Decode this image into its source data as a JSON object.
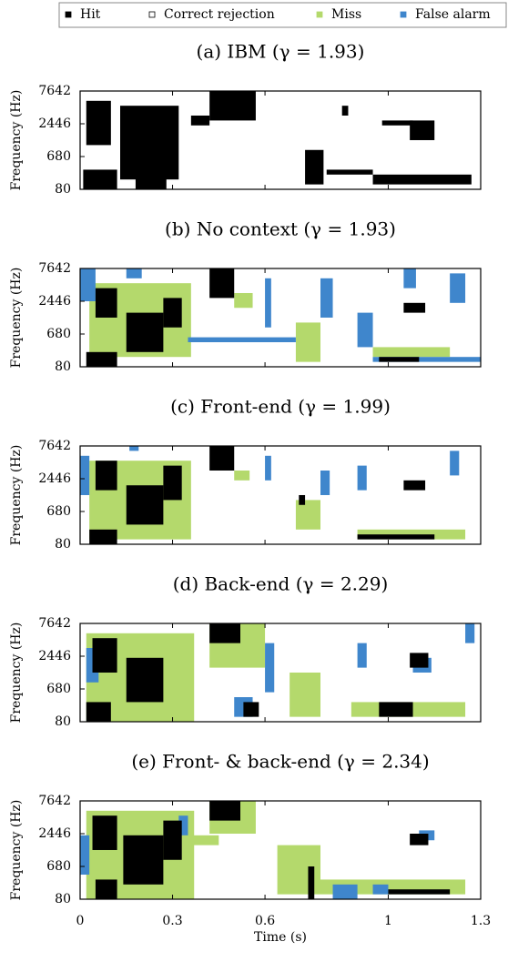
{
  "legend": {
    "series": [
      {
        "name": "Hit",
        "color": "#000000"
      },
      {
        "name": "Correct rejection",
        "color": "#ffffff"
      },
      {
        "name": "Miss",
        "color": "#b4d96c"
      },
      {
        "name": "False alarm",
        "color": "#3f86cc"
      }
    ]
  },
  "chart_data": [
    {
      "type": "mask",
      "title": "(a) IBM (γ = 1.93)",
      "ylabel": "Frequency (Hz)",
      "yscale": "erb",
      "ylim": [
        80,
        7642
      ],
      "yticks": [
        80,
        680,
        2446,
        7642
      ],
      "xlim": [
        0,
        1.3
      ],
      "xticks": [
        0,
        0.3,
        0.6,
        1,
        1.3
      ],
      "xtick_labels": false,
      "regions": [
        {
          "k": 0,
          "t0": 0.02,
          "t1": 0.1,
          "f0": 1097,
          "f1": 5465
        },
        {
          "k": 0,
          "t0": 0.13,
          "t1": 0.32,
          "f0": 198,
          "f1": 4616
        },
        {
          "k": 0,
          "t0": 0.18,
          "t1": 0.28,
          "f0": 80,
          "f1": 587
        },
        {
          "k": 0,
          "t0": 0.01,
          "t1": 0.12,
          "f0": 80,
          "f1": 361
        },
        {
          "k": 0,
          "t0": 0.42,
          "t1": 0.57,
          "f0": 2751,
          "f1": 7642
        },
        {
          "k": 0,
          "t0": 0.36,
          "t1": 0.42,
          "f0": 2305,
          "f1": 3275
        },
        {
          "k": 0,
          "t0": 0.73,
          "t1": 0.79,
          "f0": 134,
          "f1": 900
        },
        {
          "k": 0,
          "t0": 1.07,
          "t1": 1.15,
          "f0": 1331,
          "f1": 2751
        },
        {
          "k": 0,
          "t0": 0.98,
          "t1": 1.08,
          "f0": 2305,
          "f1": 2751
        },
        {
          "k": 0,
          "t0": 0.95,
          "t1": 1.27,
          "f0": 134,
          "f1": 273
        },
        {
          "k": 0,
          "t0": 0.8,
          "t1": 0.95,
          "f0": 273,
          "f1": 361
        },
        {
          "k": 0,
          "t0": 0.85,
          "t1": 0.87,
          "f0": 3275,
          "f1": 4616
        }
      ]
    },
    {
      "type": "mask",
      "title": "(b) No context (γ = 1.93)",
      "ylabel": "Frequency (Hz)",
      "yscale": "erb",
      "ylim": [
        80,
        7642
      ],
      "yticks": [
        80,
        680,
        2446,
        7642
      ],
      "xlim": [
        0,
        1.3
      ],
      "xticks": [
        0,
        0.3,
        0.6,
        1,
        1.3
      ],
      "xtick_labels": false,
      "regions": [
        {
          "k": 2,
          "t0": 0.03,
          "t1": 0.36,
          "f0": 198,
          "f1": 4616
        },
        {
          "k": 2,
          "t0": 0.7,
          "t1": 0.78,
          "f0": 134,
          "f1": 1097
        },
        {
          "k": 2,
          "t0": 0.95,
          "t1": 1.2,
          "f0": 198,
          "f1": 361
        },
        {
          "k": 2,
          "t0": 0.5,
          "t1": 0.56,
          "f0": 1924,
          "f1": 3275
        },
        {
          "k": 3,
          "t0": 0.0,
          "t1": 0.05,
          "f0": 2446,
          "f1": 7642
        },
        {
          "k": 3,
          "t0": 0.6,
          "t1": 0.62,
          "f0": 900,
          "f1": 5465
        },
        {
          "k": 3,
          "t0": 0.95,
          "t1": 1.3,
          "f0": 134,
          "f1": 198
        },
        {
          "k": 3,
          "t0": 1.05,
          "t1": 1.09,
          "f0": 3888,
          "f1": 7642
        },
        {
          "k": 3,
          "t0": 1.2,
          "t1": 1.25,
          "f0": 2305,
          "f1": 6469
        },
        {
          "k": 3,
          "t0": 0.35,
          "t1": 0.7,
          "f0": 465,
          "f1": 587
        },
        {
          "k": 3,
          "t0": 0.78,
          "t1": 0.82,
          "f0": 1331,
          "f1": 5465
        },
        {
          "k": 3,
          "t0": 0.15,
          "t1": 0.2,
          "f0": 5465,
          "f1": 7642
        },
        {
          "k": 3,
          "t0": 0.9,
          "t1": 0.95,
          "f0": 361,
          "f1": 1604
        },
        {
          "k": 0,
          "t0": 0.05,
          "t1": 0.12,
          "f0": 1331,
          "f1": 3888
        },
        {
          "k": 0,
          "t0": 0.15,
          "t1": 0.27,
          "f0": 273,
          "f1": 1604
        },
        {
          "k": 0,
          "t0": 0.27,
          "t1": 0.33,
          "f0": 900,
          "f1": 2751
        },
        {
          "k": 0,
          "t0": 0.42,
          "t1": 0.5,
          "f0": 2751,
          "f1": 7642
        },
        {
          "k": 0,
          "t0": 0.02,
          "t1": 0.12,
          "f0": 80,
          "f1": 273
        },
        {
          "k": 0,
          "t0": 0.97,
          "t1": 1.1,
          "f0": 134,
          "f1": 198
        },
        {
          "k": 0,
          "t0": 1.05,
          "t1": 1.12,
          "f0": 1604,
          "f1": 2305
        }
      ]
    },
    {
      "type": "mask",
      "title": "(c) Front-end (γ = 1.99)",
      "ylabel": "Frequency (Hz)",
      "yscale": "erb",
      "ylim": [
        80,
        7642
      ],
      "yticks": [
        80,
        680,
        2446,
        7642
      ],
      "xlim": [
        0,
        1.3
      ],
      "xticks": [
        0,
        0.3,
        0.6,
        1,
        1.3
      ],
      "xtick_labels": false,
      "regions": [
        {
          "k": 2,
          "t0": 0.03,
          "t1": 0.36,
          "f0": 134,
          "f1": 4616
        },
        {
          "k": 2,
          "t0": 0.7,
          "t1": 0.78,
          "f0": 273,
          "f1": 1097
        },
        {
          "k": 2,
          "t0": 0.9,
          "t1": 1.25,
          "f0": 134,
          "f1": 273
        },
        {
          "k": 2,
          "t0": 0.5,
          "t1": 0.55,
          "f0": 2305,
          "f1": 3275
        },
        {
          "k": 3,
          "t0": 0.0,
          "t1": 0.03,
          "f0": 1331,
          "f1": 5465
        },
        {
          "k": 3,
          "t0": 0.6,
          "t1": 0.62,
          "f0": 2305,
          "f1": 5465
        },
        {
          "k": 3,
          "t0": 0.9,
          "t1": 0.93,
          "f0": 1604,
          "f1": 3888
        },
        {
          "k": 3,
          "t0": 1.2,
          "t1": 1.23,
          "f0": 2751,
          "f1": 6469
        },
        {
          "k": 3,
          "t0": 0.78,
          "t1": 0.81,
          "f0": 1331,
          "f1": 3275
        },
        {
          "k": 3,
          "t0": 0.16,
          "t1": 0.19,
          "f0": 6469,
          "f1": 7642
        },
        {
          "k": 0,
          "t0": 0.05,
          "t1": 0.12,
          "f0": 1604,
          "f1": 4616
        },
        {
          "k": 0,
          "t0": 0.15,
          "t1": 0.27,
          "f0": 361,
          "f1": 1924
        },
        {
          "k": 0,
          "t0": 0.27,
          "t1": 0.33,
          "f0": 1097,
          "f1": 3888
        },
        {
          "k": 0,
          "t0": 0.42,
          "t1": 0.5,
          "f0": 3275,
          "f1": 7642
        },
        {
          "k": 0,
          "t0": 0.03,
          "t1": 0.12,
          "f0": 80,
          "f1": 273
        },
        {
          "k": 0,
          "t0": 0.9,
          "t1": 1.15,
          "f0": 134,
          "f1": 198
        },
        {
          "k": 0,
          "t0": 1.05,
          "t1": 1.12,
          "f0": 1604,
          "f1": 2305
        },
        {
          "k": 0,
          "t0": 0.71,
          "t1": 0.73,
          "f0": 900,
          "f1": 1331
        }
      ]
    },
    {
      "type": "mask",
      "title": "(d) Back-end (γ = 2.29)",
      "ylabel": "Frequency (Hz)",
      "yscale": "erb",
      "ylim": [
        80,
        7642
      ],
      "yticks": [
        80,
        680,
        2446,
        7642
      ],
      "xlim": [
        0,
        1.3
      ],
      "xticks": [
        0,
        0.3,
        0.6,
        1,
        1.3
      ],
      "xtick_labels": false,
      "regions": [
        {
          "k": 2,
          "t0": 0.02,
          "t1": 0.37,
          "f0": 80,
          "f1": 5465
        },
        {
          "k": 2,
          "t0": 0.42,
          "t1": 0.6,
          "f0": 1604,
          "f1": 7642
        },
        {
          "k": 2,
          "t0": 0.68,
          "t1": 0.78,
          "f0": 134,
          "f1": 1331
        },
        {
          "k": 2,
          "t0": 0.88,
          "t1": 1.25,
          "f0": 134,
          "f1": 361
        },
        {
          "k": 3,
          "t0": 0.02,
          "t1": 0.06,
          "f0": 900,
          "f1": 3275
        },
        {
          "k": 3,
          "t0": 0.6,
          "t1": 0.63,
          "f0": 587,
          "f1": 3888
        },
        {
          "k": 3,
          "t0": 0.5,
          "t1": 0.56,
          "f0": 134,
          "f1": 465
        },
        {
          "k": 3,
          "t0": 0.9,
          "t1": 0.93,
          "f0": 1604,
          "f1": 3888
        },
        {
          "k": 3,
          "t0": 1.25,
          "t1": 1.28,
          "f0": 3888,
          "f1": 7642
        },
        {
          "k": 3,
          "t0": 1.08,
          "t1": 1.14,
          "f0": 1331,
          "f1": 2305
        },
        {
          "k": 0,
          "t0": 0.04,
          "t1": 0.12,
          "f0": 1331,
          "f1": 4616
        },
        {
          "k": 0,
          "t0": 0.15,
          "t1": 0.27,
          "f0": 361,
          "f1": 2305
        },
        {
          "k": 0,
          "t0": 0.42,
          "t1": 0.52,
          "f0": 3888,
          "f1": 7642
        },
        {
          "k": 0,
          "t0": 0.02,
          "t1": 0.1,
          "f0": 80,
          "f1": 361
        },
        {
          "k": 0,
          "t0": 0.53,
          "t1": 0.58,
          "f0": 134,
          "f1": 361
        },
        {
          "k": 0,
          "t0": 1.07,
          "t1": 1.13,
          "f0": 1604,
          "f1": 2751
        },
        {
          "k": 0,
          "t0": 0.97,
          "t1": 1.08,
          "f0": 134,
          "f1": 361
        }
      ]
    },
    {
      "type": "mask",
      "title": "(e) Front- & back-end (γ = 2.34)",
      "ylabel": "Frequency (Hz)",
      "yscale": "erb",
      "ylim": [
        80,
        7642
      ],
      "yticks": [
        80,
        680,
        2446,
        7642
      ],
      "xlim": [
        0,
        1.3
      ],
      "xticks": [
        0,
        0.3,
        0.6,
        1,
        1.3
      ],
      "xtick_labels": true,
      "xlabel": "Time (s)",
      "regions": [
        {
          "k": 2,
          "t0": 0.02,
          "t1": 0.37,
          "f0": 80,
          "f1": 5465
        },
        {
          "k": 2,
          "t0": 0.42,
          "t1": 0.57,
          "f0": 2446,
          "f1": 7642
        },
        {
          "k": 2,
          "t0": 0.64,
          "t1": 0.78,
          "f0": 134,
          "f1": 1604
        },
        {
          "k": 2,
          "t0": 0.78,
          "t1": 1.25,
          "f0": 134,
          "f1": 361
        },
        {
          "k": 2,
          "t0": 0.35,
          "t1": 0.45,
          "f0": 1604,
          "f1": 2305
        },
        {
          "k": 3,
          "t0": 0.0,
          "t1": 0.03,
          "f0": 465,
          "f1": 2305
        },
        {
          "k": 3,
          "t0": 0.32,
          "t1": 0.35,
          "f0": 2305,
          "f1": 4616
        },
        {
          "k": 3,
          "t0": 0.82,
          "t1": 0.9,
          "f0": 80,
          "f1": 273
        },
        {
          "k": 3,
          "t0": 1.1,
          "t1": 1.15,
          "f0": 1924,
          "f1": 2751
        },
        {
          "k": 3,
          "t0": 0.95,
          "t1": 1.0,
          "f0": 134,
          "f1": 273
        },
        {
          "k": 0,
          "t0": 0.04,
          "t1": 0.12,
          "f0": 1331,
          "f1": 4616
        },
        {
          "k": 0,
          "t0": 0.14,
          "t1": 0.27,
          "f0": 273,
          "f1": 2305
        },
        {
          "k": 0,
          "t0": 0.27,
          "t1": 0.33,
          "f0": 900,
          "f1": 3888
        },
        {
          "k": 0,
          "t0": 0.42,
          "t1": 0.52,
          "f0": 3888,
          "f1": 7642
        },
        {
          "k": 0,
          "t0": 0.05,
          "t1": 0.12,
          "f0": 80,
          "f1": 361
        },
        {
          "k": 0,
          "t0": 1.07,
          "t1": 1.13,
          "f0": 1604,
          "f1": 2446
        },
        {
          "k": 0,
          "t0": 0.74,
          "t1": 0.76,
          "f0": 80,
          "f1": 680
        },
        {
          "k": 0,
          "t0": 1.0,
          "t1": 1.2,
          "f0": 134,
          "f1": 198
        }
      ]
    }
  ]
}
